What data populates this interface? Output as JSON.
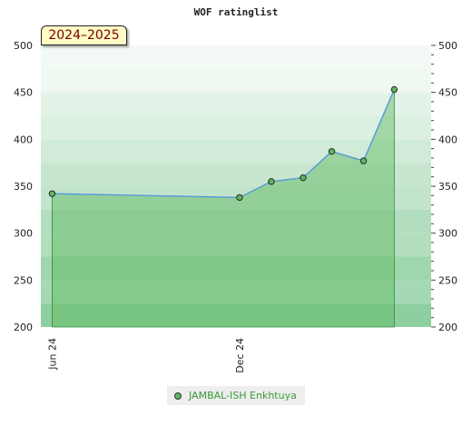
{
  "chart_data": {
    "type": "area",
    "title": "WOF ratinglist",
    "season_label": "2024–2025",
    "ylim": [
      200,
      500
    ],
    "yticks": [
      200,
      250,
      300,
      350,
      400,
      450,
      500
    ],
    "xtick_labels": [
      "Jun 24",
      "Dec 24"
    ],
    "grid": true,
    "legend_position": "bottom-center",
    "series": [
      {
        "name": "JAMBAL-ISH Enkhtuya",
        "x": [
          "2024-06",
          "2024-12",
          "2025-01",
          "2025-02",
          "2025-03",
          "2025-04",
          "2025-05"
        ],
        "values": [
          342,
          338,
          355,
          359,
          387,
          377,
          453
        ]
      }
    ],
    "colors": {
      "line": "#5b9bd5",
      "marker": "#5cb85c",
      "fill": "#5cb85c",
      "legend_text": "#3a9a3a",
      "season_text": "#7a0000",
      "season_bg": "#fffbc6"
    }
  }
}
